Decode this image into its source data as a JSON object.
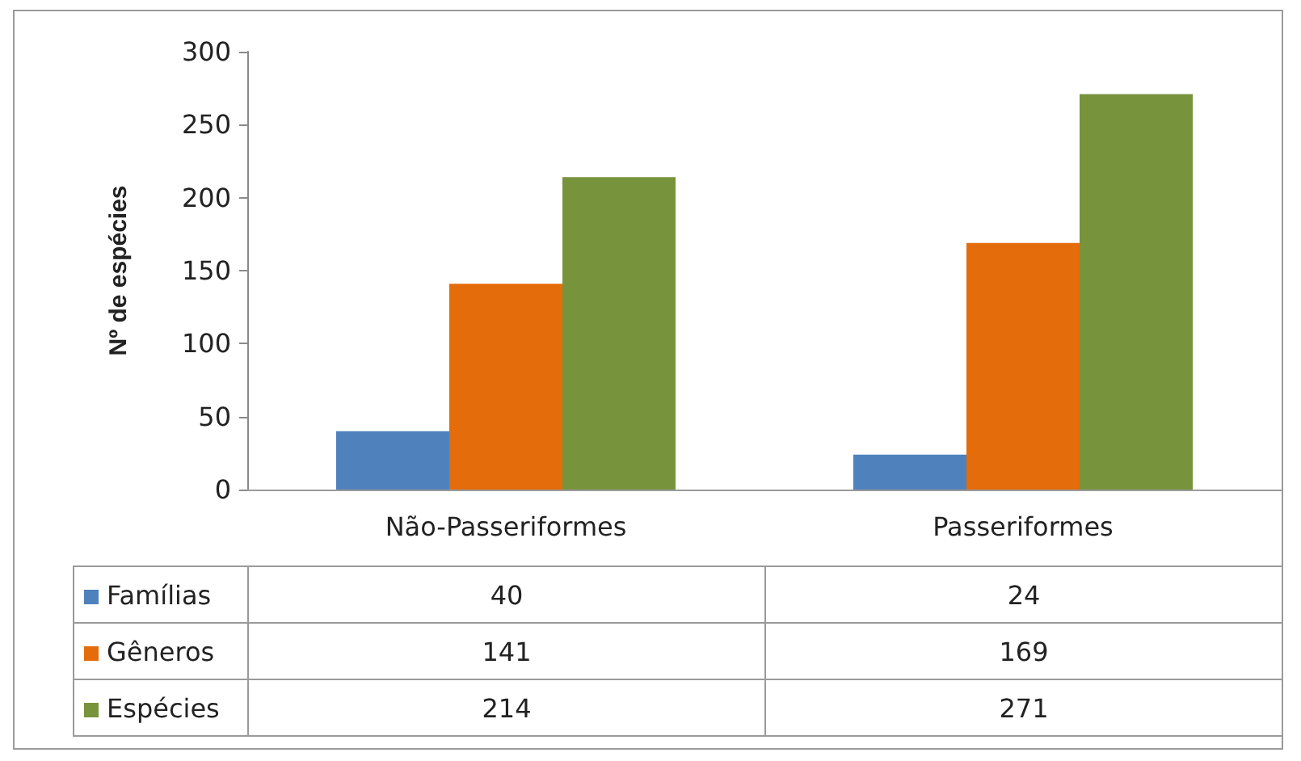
{
  "chart_data": {
    "type": "bar",
    "ylabel": "Nº de espécies",
    "categories": [
      "Não-Passeriformes",
      "Passeriformes"
    ],
    "series": [
      {
        "name": "Famílias",
        "color": "#4f81bd",
        "values": [
          40,
          24
        ]
      },
      {
        "name": "Gêneros",
        "color": "#e46c0a",
        "values": [
          141,
          169
        ]
      },
      {
        "name": "Espécies",
        "color": "#77933c",
        "values": [
          214,
          271
        ]
      }
    ],
    "ylim": [
      0,
      300
    ],
    "yticks": [
      0,
      50,
      100,
      150,
      200,
      250,
      300
    ],
    "grid": false,
    "legend": "bottom",
    "data_labels": true
  }
}
